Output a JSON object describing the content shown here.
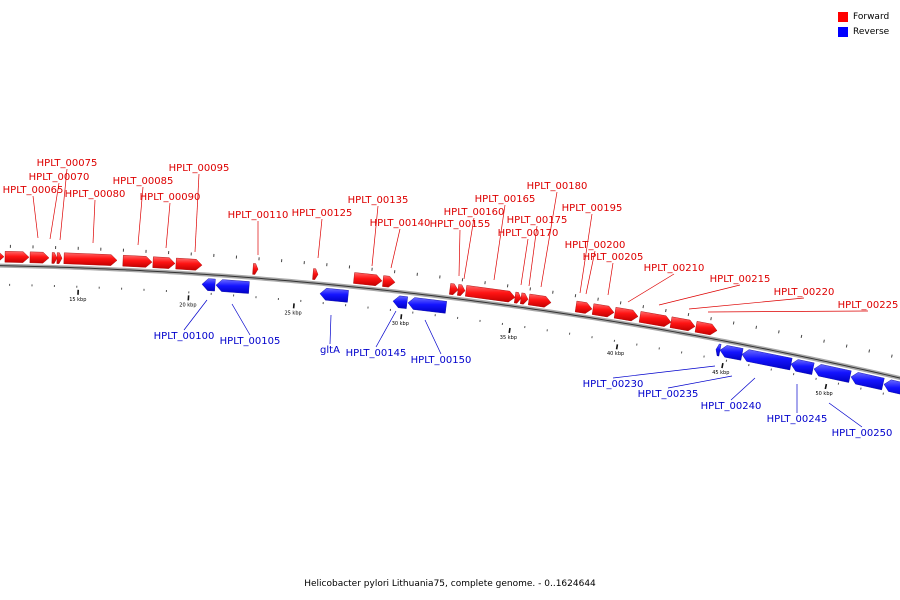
{
  "legend": {
    "forward_label": "Forward",
    "reverse_label": "Reverse",
    "forward_color": "#ff0000",
    "reverse_color": "#0000ff"
  },
  "caption": "Helicobacter pylori Lithuania75, complete genome. - 0..1624644",
  "scale_ticks": [
    "15 kbp",
    "20 kbp",
    "25 kbp",
    "30 kbp",
    "35 kbp",
    "40 kbp",
    "45 kbp",
    "50 kbp"
  ],
  "genes": {
    "forward": [
      "HPLT_00065",
      "HPLT_00070",
      "HPLT_00075",
      "HPLT_00080",
      "HPLT_00085",
      "HPLT_00090",
      "HPLT_00095",
      "HPLT_00110",
      "HPLT_00125",
      "HPLT_00135",
      "HPLT_00140",
      "HPLT_00155",
      "HPLT_00160",
      "HPLT_00165",
      "HPLT_00170",
      "HPLT_00175",
      "HPLT_00180",
      "HPLT_00195",
      "HPLT_00200",
      "HPLT_00205",
      "HPLT_00210",
      "HPLT_00215",
      "HPLT_00220",
      "HPLT_00225"
    ],
    "reverse": [
      "HPLT_00100",
      "HPLT_00105",
      "gltA",
      "HPLT_00145",
      "HPLT_00150",
      "HPLT_00230",
      "HPLT_00235",
      "HPLT_00240",
      "HPLT_00245",
      "HPLT_00250"
    ]
  }
}
